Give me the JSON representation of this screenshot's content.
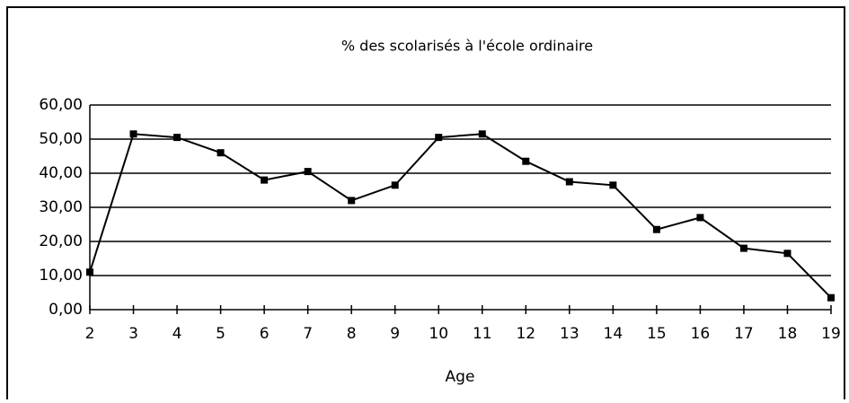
{
  "chart_data": {
    "type": "line",
    "title": "% des scolarisés à l'école ordinaire",
    "xlabel": "Age",
    "x": [
      2,
      3,
      4,
      5,
      6,
      7,
      8,
      9,
      10,
      11,
      12,
      13,
      14,
      15,
      16,
      17,
      18,
      19
    ],
    "series": [
      {
        "name": "% des scolarisés",
        "color": "#000000",
        "values": [
          11,
          51.5,
          50.5,
          46,
          38,
          40.5,
          32,
          36.5,
          50.5,
          51.5,
          43.5,
          37.5,
          36.5,
          23.5,
          27,
          18,
          16.5,
          3.5
        ]
      }
    ],
    "xlim": [
      2,
      19
    ],
    "xticks": [
      2,
      3,
      4,
      5,
      6,
      7,
      8,
      9,
      10,
      11,
      12,
      13,
      14,
      15,
      16,
      17,
      18,
      19
    ],
    "ylim": [
      0,
      60
    ],
    "yticks": [
      {
        "value": 0,
        "label": "0,00"
      },
      {
        "value": 10,
        "label": "10,00"
      },
      {
        "value": 20,
        "label": "20,00"
      },
      {
        "value": 30,
        "label": "30,00"
      },
      {
        "value": 40,
        "label": "40,00"
      },
      {
        "value": 50,
        "label": "50,00"
      },
      {
        "value": 60,
        "label": "60,00"
      }
    ],
    "grid": true
  }
}
